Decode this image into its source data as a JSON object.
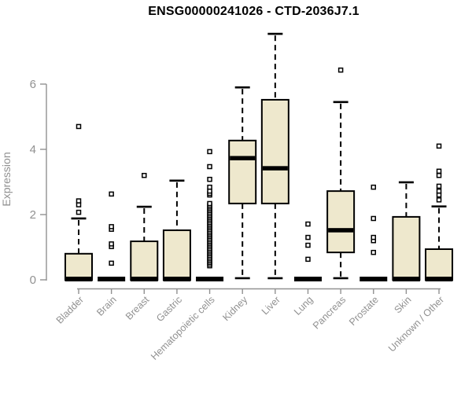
{
  "chart_data": {
    "type": "boxplot",
    "title": "ENSG00000241026 - CTD-2036J7.1",
    "ylabel": "Expression",
    "xlabel": "",
    "yticks": [
      0,
      2,
      4,
      6
    ],
    "ylim": [
      0,
      7.6
    ],
    "grid": false,
    "legend_position": "none",
    "categories": [
      "Bladder",
      "Brain",
      "Breast",
      "Gastric",
      "Hematopoietic cells",
      "Kidney",
      "Liver",
      "Lung",
      "Pancreas",
      "Prostate",
      "Skin",
      "Unknown / Other"
    ],
    "boxes": [
      {
        "category": "Bladder",
        "q1": 0,
        "median": 0,
        "q3": 0.8,
        "whisker_low": 0,
        "whisker_high": 1.88,
        "outliers": [
          2.07,
          2.3,
          2.42,
          4.7
        ]
      },
      {
        "category": "Brain",
        "q1": 0,
        "median": 0,
        "q3": 0,
        "whisker_low": 0,
        "whisker_high": 0,
        "outliers": [
          0.51,
          1.02,
          1.1,
          1.55,
          1.63,
          2.63
        ]
      },
      {
        "category": "Breast",
        "q1": 0,
        "median": 0,
        "q3": 1.18,
        "whisker_low": 0,
        "whisker_high": 2.24,
        "outliers": [
          3.2
        ]
      },
      {
        "category": "Gastric",
        "q1": 0,
        "median": 0,
        "q3": 1.52,
        "whisker_low": 0,
        "whisker_high": 3.04,
        "outliers": []
      },
      {
        "category": "Hematopoietic cells",
        "q1": 0,
        "median": 0,
        "q3": 0,
        "whisker_low": 0,
        "whisker_high": 0,
        "outliers": [
          2.6,
          2.65,
          2.72,
          2.84,
          3.08,
          3.47,
          3.93
        ],
        "outlier_band": [
          0.43,
          2.36
        ]
      },
      {
        "category": "Kidney",
        "q1": 2.34,
        "median": 3.73,
        "q3": 4.27,
        "whisker_low": 0.05,
        "whisker_high": 5.9,
        "outliers": []
      },
      {
        "category": "Liver",
        "q1": 2.34,
        "median": 3.42,
        "q3": 5.52,
        "whisker_low": 0.05,
        "whisker_high": 7.54,
        "outliers": []
      },
      {
        "category": "Lung",
        "q1": 0,
        "median": 0,
        "q3": 0,
        "whisker_low": 0,
        "whisker_high": 0,
        "outliers": [
          0.63,
          1.06,
          1.3,
          1.71
        ]
      },
      {
        "category": "Pancreas",
        "q1": 0.84,
        "median": 1.52,
        "q3": 2.72,
        "whisker_low": 0.05,
        "whisker_high": 5.45,
        "outliers": [
          6.43
        ]
      },
      {
        "category": "Prostate",
        "q1": 0,
        "median": 0,
        "q3": 0,
        "whisker_low": 0,
        "whisker_high": 0,
        "outliers": [
          0.84,
          1.2,
          1.3,
          1.88,
          2.84
        ]
      },
      {
        "category": "Skin",
        "q1": 0,
        "median": 0,
        "q3": 1.93,
        "whisker_low": 0,
        "whisker_high": 2.99,
        "outliers": []
      },
      {
        "category": "Unknown / Other",
        "q1": 0,
        "median": 0,
        "q3": 0.94,
        "whisker_low": 0,
        "whisker_high": 2.25,
        "outliers": [
          2.45,
          2.6,
          2.72,
          2.87,
          3.2,
          3.33,
          4.1
        ]
      }
    ],
    "colors": {
      "box_fill": "#EEE8CD",
      "box_stroke": "#000000",
      "median": "#000000",
      "whisker": "#000000",
      "axis": "#919191",
      "title": "#000000",
      "background": "#ffffff"
    }
  }
}
